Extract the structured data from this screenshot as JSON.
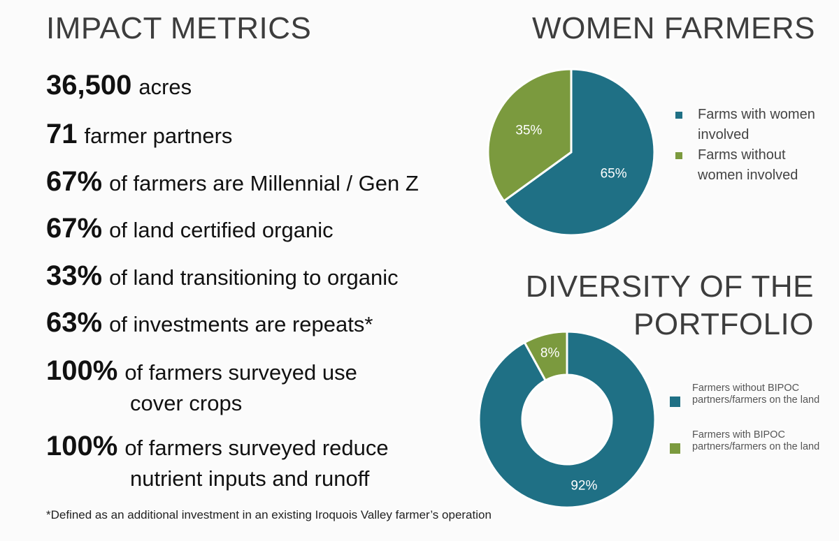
{
  "left": {
    "title": "IMPACT METRICS",
    "metrics": [
      {
        "value": "36,500",
        "text": "acres"
      },
      {
        "value": "71",
        "text": "farmer partners"
      },
      {
        "value": "67%",
        "text": "of farmers are Millennial / Gen Z"
      },
      {
        "value": "67%",
        "text": "of land certified organic"
      },
      {
        "value": "33%",
        "text": "of land transitioning to organic"
      },
      {
        "value": "63%",
        "text": "of investments are repeats*"
      },
      {
        "value": "100%",
        "text": "of farmers surveyed use",
        "cont": "cover crops"
      },
      {
        "value": "100%",
        "text": "of farmers surveyed reduce",
        "cont": "nutrient inputs and runoff"
      }
    ],
    "footnote": "*Defined as an additional investment in an existing Iroquois Valley farmer’s operation"
  },
  "chart_data": [
    {
      "type": "pie",
      "title": "WOMEN FARMERS",
      "categories": [
        "Farms with women involved",
        "Farms without women involved"
      ],
      "values": [
        65,
        35
      ],
      "labels": [
        "65%",
        "35%"
      ],
      "colors": [
        "#1f7085",
        "#7b9a3e"
      ],
      "legend": "right"
    },
    {
      "type": "pie",
      "subtype": "donut",
      "title": "DIVERSITY OF THE PORTFOLIO",
      "categories": [
        "Farmers without BIPOC partners/farmers on the land",
        "Farmers with BIPOC partners/farmers on the land"
      ],
      "values": [
        92,
        8
      ],
      "labels": [
        "92%",
        "8%"
      ],
      "colors": [
        "#1f7085",
        "#7b9a3e"
      ],
      "legend": "right"
    }
  ]
}
